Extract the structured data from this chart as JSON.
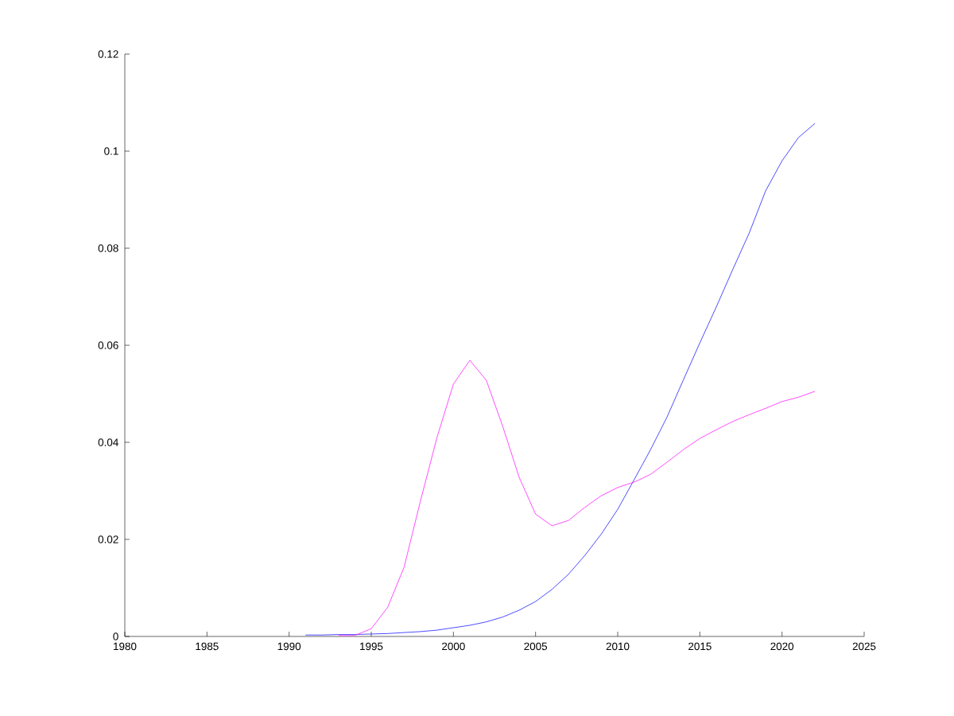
{
  "chart_data": {
    "type": "line",
    "x": [
      1991,
      1992,
      1993,
      1994,
      1995,
      1996,
      1997,
      1998,
      1999,
      2000,
      2001,
      2002,
      2003,
      2004,
      2005,
      2006,
      2007,
      2008,
      2009,
      2010,
      2011,
      2012,
      2013,
      2014,
      2015,
      2016,
      2017,
      2018,
      2019,
      2020,
      2021,
      2022
    ],
    "series": [
      {
        "color": "#0000ff",
        "values": [
          0.0003,
          0.0003,
          0.0004,
          0.0004,
          0.0005,
          0.0006,
          0.0008,
          0.001,
          0.0013,
          0.0018,
          0.0023,
          0.003,
          0.004,
          0.0054,
          0.0072,
          0.0097,
          0.0128,
          0.0167,
          0.0211,
          0.0262,
          0.0323,
          0.0385,
          0.0452,
          0.0529,
          0.0605,
          0.0679,
          0.0756,
          0.0831,
          0.0918,
          0.098,
          0.1028,
          0.1057
        ]
      },
      {
        "color": "#ff00ff",
        "values": [
          null,
          null,
          0.0002,
          0.0002,
          0.0016,
          0.006,
          0.0143,
          0.028,
          0.041,
          0.052,
          0.0569,
          0.0528,
          0.0433,
          0.0328,
          0.0252,
          0.0228,
          0.0239,
          0.0266,
          0.029,
          0.0307,
          0.0318,
          0.0334,
          0.0359,
          0.0385,
          0.0408,
          0.0426,
          0.0443,
          0.0457,
          0.047,
          0.0484,
          0.0493,
          0.0505
        ]
      }
    ],
    "xlim": [
      1980,
      2025
    ],
    "xticks": [
      1980,
      1985,
      1990,
      1995,
      2000,
      2005,
      2010,
      2015,
      2020,
      2025
    ],
    "ylim": [
      0,
      0.12
    ],
    "yticks": [
      0,
      0.02,
      0.04,
      0.06,
      0.08,
      0.1,
      0.12
    ]
  }
}
